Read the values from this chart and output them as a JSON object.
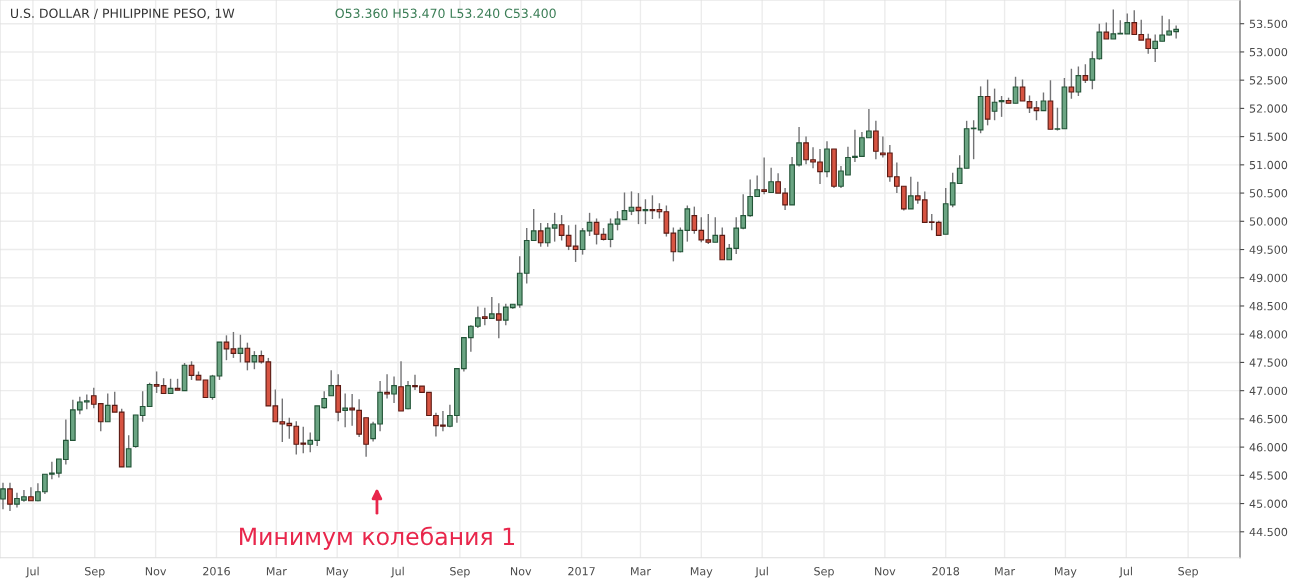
{
  "chart_data": {
    "type": "candlestick",
    "title": "U.S. DOLLAR / PHILIPPINE PESO, 1W",
    "subtitle": "O53.360 H53.470 L53.240 C53.400",
    "x": [
      "2015-06-01",
      "2015-06-08",
      "2015-06-15",
      "2015-06-22",
      "2015-06-29",
      "2015-07-06",
      "2015-07-13",
      "2015-07-20",
      "2015-07-27",
      "2015-08-03",
      "2015-08-10",
      "2015-08-17",
      "2015-08-24",
      "2015-08-31",
      "2015-09-07",
      "2015-09-14",
      "2015-09-21",
      "2015-09-28",
      "2015-10-05",
      "2015-10-12",
      "2015-10-19",
      "2015-10-26",
      "2015-11-02",
      "2015-11-09",
      "2015-11-16",
      "2015-11-23",
      "2015-11-30",
      "2015-12-07",
      "2015-12-14",
      "2015-12-21",
      "2015-12-28",
      "2016-01-04",
      "2016-01-11",
      "2016-01-18",
      "2016-01-25",
      "2016-02-01",
      "2016-02-08",
      "2016-02-15",
      "2016-02-22",
      "2016-02-29",
      "2016-03-07",
      "2016-03-14",
      "2016-03-21",
      "2016-03-28",
      "2016-04-04",
      "2016-04-11",
      "2016-04-18",
      "2016-04-25",
      "2016-05-02",
      "2016-05-09",
      "2016-05-16",
      "2016-05-23",
      "2016-05-30",
      "2016-06-06",
      "2016-06-13",
      "2016-06-20",
      "2016-06-27",
      "2016-07-04",
      "2016-07-11",
      "2016-07-18",
      "2016-07-25",
      "2016-08-01",
      "2016-08-08",
      "2016-08-15",
      "2016-08-22",
      "2016-08-29",
      "2016-09-05",
      "2016-09-12",
      "2016-09-19",
      "2016-09-26",
      "2016-10-03",
      "2016-10-10",
      "2016-10-17",
      "2016-10-24",
      "2016-10-31",
      "2016-11-07",
      "2016-11-14",
      "2016-11-21",
      "2016-11-28",
      "2016-12-05",
      "2016-12-12",
      "2016-12-19",
      "2016-12-26",
      "2017-01-02",
      "2017-01-09",
      "2017-01-16",
      "2017-01-23",
      "2017-01-30",
      "2017-02-06",
      "2017-02-13",
      "2017-02-20",
      "2017-02-27",
      "2017-03-06",
      "2017-03-13",
      "2017-03-20",
      "2017-03-27",
      "2017-04-03",
      "2017-04-10",
      "2017-04-17",
      "2017-04-24",
      "2017-05-01",
      "2017-05-08",
      "2017-05-15",
      "2017-05-22",
      "2017-05-29",
      "2017-06-05",
      "2017-06-12",
      "2017-06-19",
      "2017-06-26",
      "2017-07-03",
      "2017-07-10",
      "2017-07-17",
      "2017-07-24",
      "2017-07-31",
      "2017-08-07",
      "2017-08-14",
      "2017-08-21",
      "2017-08-28",
      "2017-09-04",
      "2017-09-11",
      "2017-09-18",
      "2017-09-25",
      "2017-10-02",
      "2017-10-09",
      "2017-10-16",
      "2017-10-23",
      "2017-10-30",
      "2017-11-06",
      "2017-11-13",
      "2017-11-20",
      "2017-11-27",
      "2017-12-04",
      "2017-12-11",
      "2017-12-18",
      "2017-12-25",
      "2018-01-01",
      "2018-01-08",
      "2018-01-15",
      "2018-01-22",
      "2018-01-29",
      "2018-02-05",
      "2018-02-12",
      "2018-02-19",
      "2018-02-26",
      "2018-03-05",
      "2018-03-12",
      "2018-03-19",
      "2018-03-26",
      "2018-04-02",
      "2018-04-09",
      "2018-04-16",
      "2018-04-23",
      "2018-04-30",
      "2018-05-07",
      "2018-05-14",
      "2018-05-21",
      "2018-05-28",
      "2018-06-04",
      "2018-06-11",
      "2018-06-18",
      "2018-06-25",
      "2018-07-02",
      "2018-07-09",
      "2018-07-16",
      "2018-07-23",
      "2018-07-30",
      "2018-08-06",
      "2018-08-13",
      "2018-08-20"
    ],
    "ohlc": [
      [
        45.08,
        45.37,
        44.9,
        45.26
      ],
      [
        45.26,
        45.37,
        44.87,
        44.99
      ],
      [
        44.99,
        45.19,
        44.93,
        45.09
      ],
      [
        45.06,
        45.24,
        45.03,
        45.12
      ],
      [
        45.12,
        45.29,
        45.05,
        45.05
      ],
      [
        45.05,
        45.36,
        45.04,
        45.21
      ],
      [
        45.21,
        45.52,
        45.17,
        45.52
      ],
      [
        45.52,
        45.74,
        45.43,
        45.54
      ],
      [
        45.54,
        45.79,
        45.46,
        45.79
      ],
      [
        45.78,
        46.49,
        45.69,
        46.12
      ],
      [
        46.12,
        46.84,
        46.11,
        46.66
      ],
      [
        46.66,
        46.89,
        46.58,
        46.8
      ],
      [
        46.8,
        46.93,
        46.67,
        46.82
      ],
      [
        46.91,
        47.05,
        46.69,
        46.76
      ],
      [
        46.77,
        46.77,
        46.28,
        46.45
      ],
      [
        46.45,
        46.95,
        46.45,
        46.74
      ],
      [
        46.74,
        46.98,
        46.62,
        46.62
      ],
      [
        46.62,
        46.68,
        45.65,
        45.65
      ],
      [
        45.65,
        46.21,
        45.65,
        45.97
      ],
      [
        46.01,
        46.57,
        45.99,
        46.57
      ],
      [
        46.56,
        46.99,
        46.45,
        46.72
      ],
      [
        46.72,
        47.14,
        46.72,
        47.11
      ],
      [
        47.11,
        47.34,
        46.96,
        47.08
      ],
      [
        47.09,
        47.22,
        46.95,
        46.95
      ],
      [
        46.95,
        47.21,
        46.95,
        47.04
      ],
      [
        47.04,
        47.21,
        47.01,
        47.01
      ],
      [
        47.0,
        47.49,
        47.0,
        47.45
      ],
      [
        47.45,
        47.52,
        47.19,
        47.27
      ],
      [
        47.27,
        47.34,
        47.19,
        47.19
      ],
      [
        47.19,
        47.19,
        46.88,
        46.88
      ],
      [
        46.88,
        47.28,
        46.84,
        47.26
      ],
      [
        47.26,
        47.86,
        47.19,
        47.86
      ],
      [
        47.86,
        47.98,
        47.54,
        47.74
      ],
      [
        47.74,
        48.04,
        47.58,
        47.66
      ],
      [
        47.66,
        47.99,
        47.5,
        47.75
      ],
      [
        47.75,
        47.85,
        47.36,
        47.51
      ],
      [
        47.51,
        47.7,
        47.38,
        47.62
      ],
      [
        47.62,
        47.71,
        47.48,
        47.51
      ],
      [
        47.51,
        47.58,
        46.73,
        46.73
      ],
      [
        46.73,
        47.02,
        46.45,
        46.45
      ],
      [
        46.45,
        46.86,
        46.09,
        46.41
      ],
      [
        46.42,
        46.52,
        46.15,
        46.38
      ],
      [
        46.37,
        46.46,
        45.87,
        46.05
      ],
      [
        46.07,
        46.36,
        45.89,
        46.05
      ],
      [
        46.05,
        46.26,
        45.91,
        46.12
      ],
      [
        46.12,
        46.73,
        46.02,
        46.73
      ],
      [
        46.7,
        46.99,
        46.68,
        46.86
      ],
      [
        46.91,
        47.36,
        46.91,
        47.09
      ],
      [
        47.09,
        47.29,
        46.46,
        46.62
      ],
      [
        46.65,
        46.95,
        46.35,
        46.69
      ],
      [
        46.69,
        46.94,
        46.38,
        46.66
      ],
      [
        46.65,
        46.85,
        46.18,
        46.23
      ],
      [
        46.52,
        46.52,
        45.83,
        46.05
      ],
      [
        46.15,
        46.45,
        46.1,
        46.41
      ],
      [
        46.41,
        47.17,
        46.28,
        46.97
      ],
      [
        46.97,
        47.29,
        46.86,
        46.94
      ],
      [
        46.94,
        47.25,
        46.78,
        47.09
      ],
      [
        47.07,
        47.52,
        46.64,
        46.64
      ],
      [
        46.68,
        47.17,
        46.67,
        47.09
      ],
      [
        47.09,
        47.28,
        47.01,
        47.07
      ],
      [
        47.08,
        47.08,
        46.97,
        46.97
      ],
      [
        46.97,
        46.97,
        46.56,
        46.56
      ],
      [
        46.56,
        46.61,
        46.19,
        46.38
      ],
      [
        46.39,
        46.64,
        46.28,
        46.37
      ],
      [
        46.37,
        46.75,
        46.35,
        46.56
      ],
      [
        46.56,
        47.39,
        46.43,
        47.39
      ],
      [
        47.39,
        47.94,
        47.34,
        47.94
      ],
      [
        47.94,
        48.16,
        47.69,
        48.14
      ],
      [
        48.14,
        48.49,
        48.11,
        48.29
      ],
      [
        48.31,
        48.47,
        48.16,
        48.28
      ],
      [
        48.28,
        48.66,
        48.27,
        48.36
      ],
      [
        48.36,
        48.55,
        47.93,
        48.25
      ],
      [
        48.25,
        48.54,
        48.16,
        48.48
      ],
      [
        48.47,
        48.53,
        48.45,
        48.53
      ],
      [
        48.52,
        49.38,
        48.47,
        49.08
      ],
      [
        49.08,
        49.88,
        48.9,
        49.66
      ],
      [
        49.66,
        50.22,
        49.66,
        49.83
      ],
      [
        49.83,
        49.97,
        49.55,
        49.62
      ],
      [
        49.62,
        49.97,
        49.55,
        49.88
      ],
      [
        49.88,
        50.15,
        49.64,
        49.94
      ],
      [
        49.94,
        50.11,
        49.66,
        49.75
      ],
      [
        49.75,
        49.93,
        49.49,
        49.56
      ],
      [
        49.56,
        49.94,
        49.28,
        49.5
      ],
      [
        49.5,
        49.88,
        49.41,
        49.83
      ],
      [
        49.83,
        50.15,
        49.74,
        49.98
      ],
      [
        49.98,
        50.05,
        49.59,
        49.77
      ],
      [
        49.77,
        49.88,
        49.66,
        49.68
      ],
      [
        49.68,
        50.05,
        49.54,
        49.95
      ],
      [
        49.95,
        50.18,
        49.84,
        50.04
      ],
      [
        50.03,
        50.51,
        50.03,
        50.19
      ],
      [
        50.18,
        50.53,
        50.11,
        50.25
      ],
      [
        50.25,
        50.5,
        49.95,
        50.19
      ],
      [
        50.19,
        50.39,
        49.95,
        50.21
      ],
      [
        50.21,
        50.46,
        50.04,
        50.19
      ],
      [
        50.21,
        50.32,
        50.05,
        50.17
      ],
      [
        50.17,
        50.28,
        49.73,
        49.79
      ],
      [
        49.79,
        49.89,
        49.29,
        49.46
      ],
      [
        49.46,
        49.89,
        49.45,
        49.84
      ],
      [
        49.84,
        50.28,
        49.64,
        50.22
      ],
      [
        50.1,
        50.26,
        49.78,
        49.84
      ],
      [
        49.84,
        50.07,
        49.63,
        49.67
      ],
      [
        49.67,
        50.13,
        49.6,
        49.63
      ],
      [
        49.63,
        50.07,
        49.63,
        49.75
      ],
      [
        49.75,
        49.89,
        49.32,
        49.32
      ],
      [
        49.32,
        49.6,
        49.32,
        49.52
      ],
      [
        49.52,
        50.07,
        49.42,
        49.88
      ],
      [
        49.88,
        50.48,
        49.86,
        50.1
      ],
      [
        50.1,
        50.74,
        50.08,
        50.44
      ],
      [
        50.44,
        50.81,
        50.44,
        50.56
      ],
      [
        50.56,
        51.13,
        50.48,
        50.53
      ],
      [
        50.51,
        50.95,
        50.51,
        50.7
      ],
      [
        50.7,
        50.85,
        50.5,
        50.5
      ],
      [
        50.5,
        50.59,
        50.2,
        50.29
      ],
      [
        50.29,
        51.14,
        50.29,
        51.0
      ],
      [
        51.0,
        51.67,
        50.97,
        51.39
      ],
      [
        51.39,
        51.5,
        51.01,
        51.09
      ],
      [
        51.09,
        51.31,
        50.94,
        51.05
      ],
      [
        51.05,
        51.28,
        50.66,
        50.88
      ],
      [
        50.88,
        51.42,
        50.78,
        51.28
      ],
      [
        51.28,
        51.28,
        50.59,
        50.62
      ],
      [
        50.62,
        50.98,
        50.59,
        50.89
      ],
      [
        50.82,
        51.32,
        50.82,
        51.13
      ],
      [
        51.13,
        51.62,
        51.05,
        51.15
      ],
      [
        51.15,
        51.58,
        51.15,
        51.48
      ],
      [
        51.48,
        51.99,
        51.48,
        51.6
      ],
      [
        51.6,
        51.78,
        51.1,
        51.24
      ],
      [
        51.21,
        51.5,
        51.13,
        51.18
      ],
      [
        51.21,
        51.35,
        50.7,
        50.79
      ],
      [
        50.79,
        51.04,
        50.5,
        50.62
      ],
      [
        50.62,
        50.62,
        50.19,
        50.22
      ],
      [
        50.22,
        50.79,
        50.22,
        50.45
      ],
      [
        50.45,
        50.7,
        50.31,
        50.38
      ],
      [
        50.38,
        50.53,
        49.98,
        49.98
      ],
      [
        49.99,
        50.13,
        49.84,
        49.98
      ],
      [
        49.98,
        50.01,
        49.75,
        49.75
      ],
      [
        49.77,
        50.59,
        49.77,
        50.31
      ],
      [
        50.29,
        50.86,
        50.25,
        50.68
      ],
      [
        50.67,
        51.17,
        50.67,
        50.94
      ],
      [
        50.94,
        51.78,
        50.94,
        51.64
      ],
      [
        51.64,
        51.79,
        51.1,
        51.65
      ],
      [
        51.62,
        52.39,
        51.56,
        52.21
      ],
      [
        52.21,
        52.51,
        51.7,
        51.81
      ],
      [
        51.95,
        52.35,
        51.79,
        52.11
      ],
      [
        52.12,
        52.22,
        51.85,
        52.14
      ],
      [
        52.14,
        52.19,
        52.09,
        52.09
      ],
      [
        52.09,
        52.56,
        52.09,
        52.38
      ],
      [
        52.38,
        52.51,
        52.13,
        52.13
      ],
      [
        52.12,
        52.23,
        51.92,
        52.01
      ],
      [
        52.01,
        52.13,
        51.79,
        51.96
      ],
      [
        51.96,
        52.28,
        51.96,
        52.13
      ],
      [
        52.13,
        52.5,
        51.63,
        51.63
      ],
      [
        51.63,
        52.01,
        51.61,
        51.64
      ],
      [
        51.64,
        52.54,
        51.64,
        52.38
      ],
      [
        52.38,
        52.7,
        52.17,
        52.29
      ],
      [
        52.29,
        52.74,
        52.22,
        52.58
      ],
      [
        52.58,
        52.78,
        52.45,
        52.5
      ],
      [
        52.5,
        53.01,
        52.34,
        52.88
      ],
      [
        52.88,
        53.5,
        52.86,
        53.35
      ],
      [
        53.35,
        53.52,
        53.23,
        53.23
      ],
      [
        53.23,
        53.75,
        53.23,
        53.32
      ],
      [
        53.32,
        53.56,
        53.32,
        53.33
      ],
      [
        53.32,
        53.68,
        53.32,
        53.52
      ],
      [
        53.52,
        53.74,
        53.31,
        53.31
      ],
      [
        53.31,
        53.57,
        53.21,
        53.21
      ],
      [
        53.23,
        53.32,
        52.97,
        53.06
      ],
      [
        53.06,
        53.31,
        52.82,
        53.19
      ],
      [
        53.19,
        53.64,
        53.19,
        53.3
      ],
      [
        53.3,
        53.58,
        53.29,
        53.37
      ],
      [
        53.36,
        53.47,
        53.24,
        53.4
      ]
    ],
    "ylim": [
      44.04,
      53.92
    ],
    "yticks": [
      {
        "value": 44.5,
        "label": "44.500"
      },
      {
        "value": 45.0,
        "label": "45.000"
      },
      {
        "value": 45.5,
        "label": "45.500"
      },
      {
        "value": 46.0,
        "label": "46.000"
      },
      {
        "value": 46.5,
        "label": "46.500"
      },
      {
        "value": 47.0,
        "label": "47.000"
      },
      {
        "value": 47.5,
        "label": "47.500"
      },
      {
        "value": 48.0,
        "label": "48.000"
      },
      {
        "value": 48.5,
        "label": "48.500"
      },
      {
        "value": 49.0,
        "label": "49.000"
      },
      {
        "value": 49.5,
        "label": "49.500"
      },
      {
        "value": 50.0,
        "label": "50.000"
      },
      {
        "value": 50.5,
        "label": "50.500"
      },
      {
        "value": 51.0,
        "label": "51.000"
      },
      {
        "value": 51.5,
        "label": "51.500"
      },
      {
        "value": 52.0,
        "label": "52.000"
      },
      {
        "value": 52.5,
        "label": "52.500"
      },
      {
        "value": 53.0,
        "label": "53.000"
      },
      {
        "value": 53.5,
        "label": "53.500"
      }
    ],
    "xlim": [
      "2015-05-29",
      "2018-10-23"
    ],
    "xticks": [
      {
        "value": "2015-07-01",
        "label": "Jul"
      },
      {
        "value": "2015-09-01",
        "label": "Sep"
      },
      {
        "value": "2015-11-01",
        "label": "Nov"
      },
      {
        "value": "2016-01-01",
        "label": "2016"
      },
      {
        "value": "2016-03-01",
        "label": "Mar"
      },
      {
        "value": "2016-05-01",
        "label": "May"
      },
      {
        "value": "2016-07-01",
        "label": "Jul"
      },
      {
        "value": "2016-09-01",
        "label": "Sep"
      },
      {
        "value": "2016-11-01",
        "label": "Nov"
      },
      {
        "value": "2017-01-01",
        "label": "2017"
      },
      {
        "value": "2017-03-01",
        "label": "Mar"
      },
      {
        "value": "2017-05-01",
        "label": "May"
      },
      {
        "value": "2017-07-01",
        "label": "Jul"
      },
      {
        "value": "2017-09-01",
        "label": "Sep"
      },
      {
        "value": "2017-11-01",
        "label": "Nov"
      },
      {
        "value": "2018-01-01",
        "label": "2018"
      },
      {
        "value": "2018-03-01",
        "label": "Mar"
      },
      {
        "value": "2018-05-01",
        "label": "May"
      },
      {
        "value": "2018-07-01",
        "label": "Jul"
      },
      {
        "value": "2018-09-01",
        "label": "Sep"
      }
    ],
    "grid": true,
    "legend": false,
    "annotations": [
      "Минимум колебания 1"
    ]
  }
}
